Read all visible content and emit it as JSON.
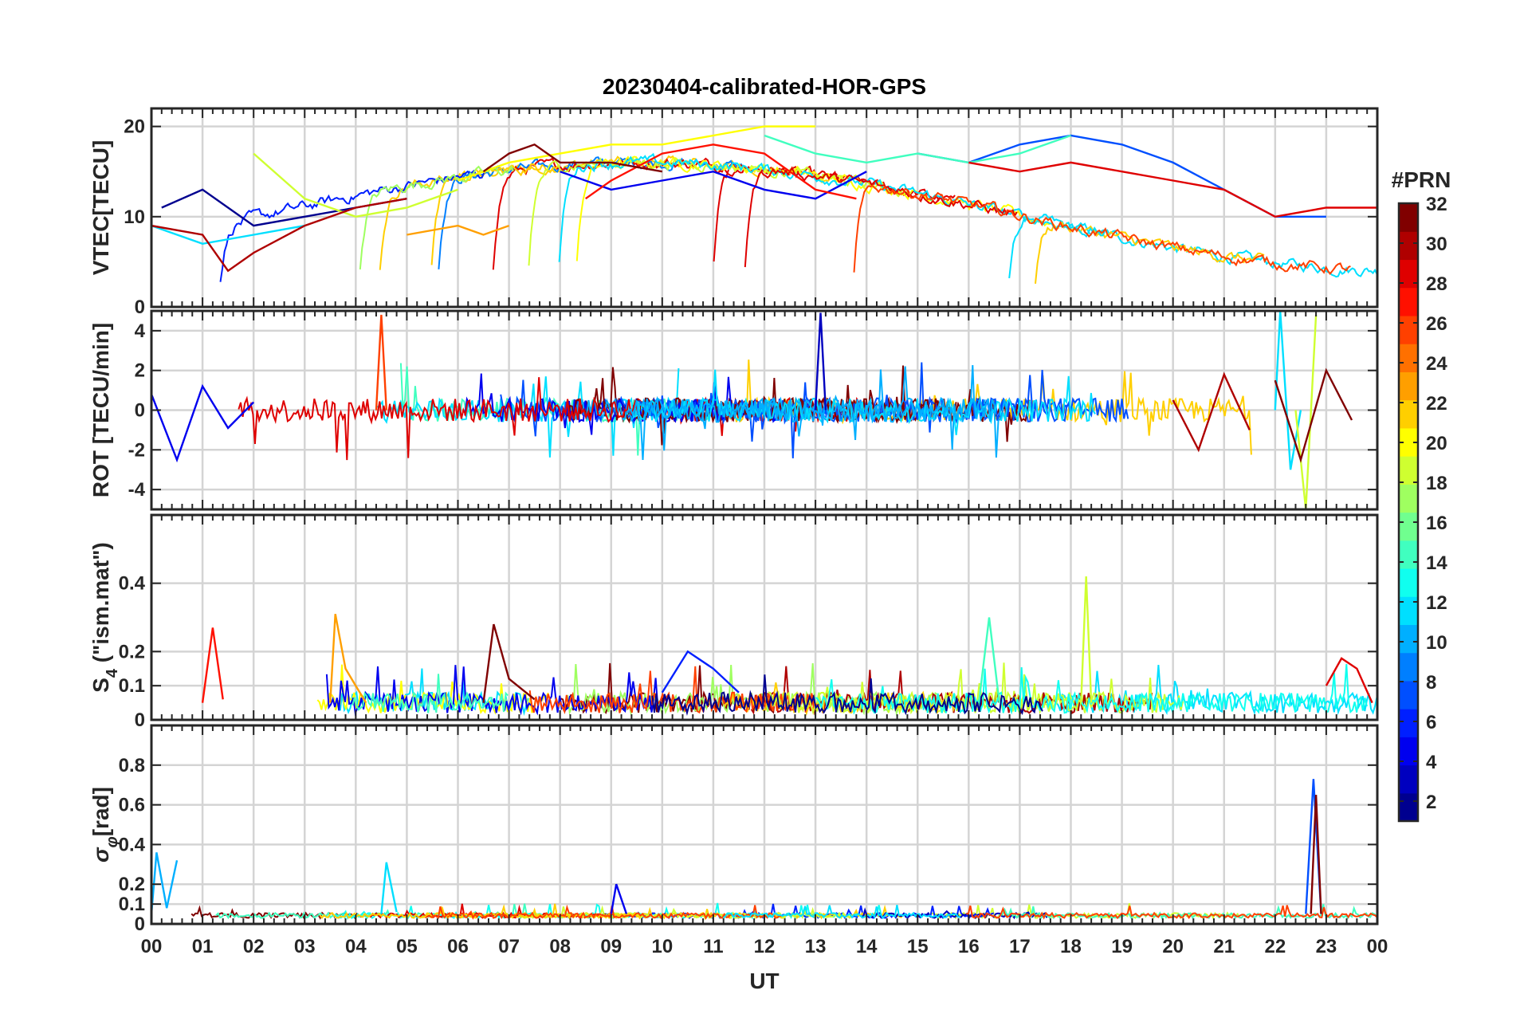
{
  "chart_data": {
    "type": "line",
    "title": "20230404-calibrated-HOR-GPS",
    "xlabel": "UT",
    "x_ticks": [
      "00",
      "01",
      "02",
      "03",
      "04",
      "05",
      "06",
      "07",
      "08",
      "09",
      "10",
      "11",
      "12",
      "13",
      "14",
      "15",
      "16",
      "17",
      "18",
      "19",
      "20",
      "21",
      "22",
      "23",
      "00"
    ],
    "xlim": [
      0,
      24
    ],
    "grid": true,
    "colorbar": {
      "label": "#PRN",
      "range": [
        1,
        32
      ],
      "ticks": [
        "2",
        "4",
        "6",
        "8",
        "10",
        "12",
        "14",
        "16",
        "18",
        "20",
        "22",
        "24",
        "26",
        "28",
        "30",
        "32"
      ],
      "colors": [
        "#00008f",
        "#0000bf",
        "#0000ef",
        "#001fff",
        "#004fff",
        "#007fff",
        "#00afff",
        "#00dfff",
        "#10ffef",
        "#40ffbf",
        "#70ff8f",
        "#9fff60",
        "#cfff30",
        "#ffff00",
        "#ffcf00",
        "#ff9f00",
        "#ff7000",
        "#ff4000",
        "#ff1000",
        "#df0000",
        "#af0000",
        "#800000"
      ]
    },
    "panels": [
      {
        "ylabel": "VTEC[TECU]",
        "ylim": [
          0,
          22
        ],
        "y_ticks": [
          0,
          10,
          20
        ],
        "series": [
          {
            "prn": 2,
            "x": [
              0.2,
              1.0,
              2.0,
              3.0,
              4.0,
              5.0
            ],
            "y": [
              11,
              13,
              9,
              10,
              11,
              12
            ]
          },
          {
            "prn": 5,
            "x": [
              8.0,
              9.0,
              10.0,
              11.0,
              12.0,
              13.0,
              14.0
            ],
            "y": [
              15,
              13,
              14,
              15,
              13,
              12,
              15
            ]
          },
          {
            "prn": 7,
            "x": [
              15.0,
              16.0,
              17.0,
              18.0,
              19.0,
              20.0,
              21.0,
              22.0,
              23.0
            ],
            "y": [
              17,
              16,
              18,
              19,
              18,
              16,
              13,
              10,
              10
            ]
          },
          {
            "prn": 12,
            "x": [
              0,
              1.0,
              2.0,
              3.0
            ],
            "y": [
              9,
              7,
              8,
              9
            ]
          },
          {
            "prn": 15,
            "x": [
              12.0,
              13.0,
              14.0,
              15.0,
              16.0,
              17.0,
              18.0
            ],
            "y": [
              19,
              17,
              16,
              17,
              16,
              17,
              19
            ]
          },
          {
            "prn": 18,
            "x": [
              2.0,
              3.0,
              4.0,
              5.0,
              6.0
            ],
            "y": [
              17,
              12,
              10,
              11,
              13
            ]
          },
          {
            "prn": 20,
            "x": [
              6.0,
              7.0,
              8.0,
              9.0,
              10.0,
              11.0,
              12.0,
              13.0
            ],
            "y": [
              14,
              16,
              17,
              18,
              18,
              19,
              20,
              20
            ]
          },
          {
            "prn": 23,
            "x": [
              5.0,
              6.0,
              6.5,
              7.0
            ],
            "y": [
              8,
              9,
              8,
              9
            ]
          },
          {
            "prn": 27,
            "x": [
              8.5,
              9.0,
              10.0,
              11.0,
              12.0,
              13.0,
              13.8
            ],
            "y": [
              12,
              14,
              17,
              18,
              17,
              13,
              12
            ]
          },
          {
            "prn": 30,
            "x": [
              0,
              1.0,
              1.5,
              2.0,
              3.0,
              4.0,
              5.0
            ],
            "y": [
              9,
              8,
              4,
              6,
              9,
              11,
              12
            ]
          },
          {
            "prn": 32,
            "x": [
              6.5,
              7.0,
              7.5,
              8.0,
              9.0,
              10.0
            ],
            "y": [
              15,
              17,
              18,
              16,
              16,
              15
            ]
          },
          {
            "prn": 29,
            "x": [
              16.0,
              17.0,
              18.0,
              19.0,
              20.0,
              21.0,
              22.0,
              23.0,
              24.0
            ],
            "y": [
              16,
              15,
              16,
              15,
              14,
              13,
              10,
              11,
              11
            ]
          }
        ]
      },
      {
        "ylabel": "ROT [TECU/min]",
        "ylim": [
          -5,
          5
        ],
        "y_ticks": [
          -4,
          -2,
          0,
          2,
          4
        ],
        "series": [
          {
            "prn": 4,
            "x": [
              0,
              0.5,
              1.0,
              1.5,
              2.0
            ],
            "y": [
              0.8,
              -2.5,
              1.2,
              -0.9,
              0.4
            ]
          },
          {
            "prn": 26,
            "x": [
              4.4,
              4.5,
              4.6
            ],
            "y": [
              0,
              4.8,
              0
            ]
          },
          {
            "prn": 3,
            "x": [
              13.0,
              13.1,
              13.2
            ],
            "y": [
              0,
              4.9,
              0
            ]
          },
          {
            "prn": 11,
            "x": [
              22.0,
              22.1,
              22.3,
              22.5
            ],
            "y": [
              0,
              5.0,
              -3.0,
              0
            ]
          },
          {
            "prn": 19,
            "x": [
              22.4,
              22.6,
              22.8
            ],
            "y": [
              0,
              -5.0,
              4.8
            ]
          },
          {
            "prn": 30,
            "x": [
              20.0,
              20.5,
              21.0,
              21.5
            ],
            "y": [
              0.5,
              -2.0,
              1.8,
              -1.0
            ]
          },
          {
            "prn": 32,
            "x": [
              22.0,
              22.5,
              23.0,
              23.5
            ],
            "y": [
              1.5,
              -2.5,
              2.0,
              -0.5
            ]
          }
        ]
      },
      {
        "ylabel": "S4 (\"ism.mat\")",
        "ylabel_main": "S",
        "ylabel_sub": "4",
        "ylabel_rest": " (\"ism.mat\")",
        "ylim": [
          0,
          0.6
        ],
        "y_ticks": [
          0,
          0.1,
          0.2,
          0.4
        ],
        "y_tick_labels": [
          "0",
          "0.1",
          "0.2",
          "0.4"
        ],
        "series": [
          {
            "prn": 18,
            "x": [
              18.2,
              18.3,
              18.4
            ],
            "y": [
              0.05,
              0.42,
              0.05
            ]
          },
          {
            "prn": 23,
            "x": [
              3.5,
              3.6,
              3.8,
              4.0,
              4.2
            ],
            "y": [
              0.05,
              0.31,
              0.15,
              0.1,
              0.05
            ]
          },
          {
            "prn": 31,
            "x": [
              6.5,
              6.7,
              7.0,
              7.5
            ],
            "y": [
              0.05,
              0.28,
              0.12,
              0.06
            ]
          },
          {
            "prn": 27,
            "x": [
              1.0,
              1.2,
              1.4
            ],
            "y": [
              0.05,
              0.27,
              0.06
            ]
          },
          {
            "prn": 6,
            "x": [
              10.0,
              10.5,
              11.0,
              11.5
            ],
            "y": [
              0.08,
              0.2,
              0.15,
              0.08
            ]
          },
          {
            "prn": 15,
            "x": [
              16.2,
              16.4,
              16.6
            ],
            "y": [
              0.05,
              0.3,
              0.05
            ]
          },
          {
            "prn": 28,
            "x": [
              23.0,
              23.3,
              23.6,
              23.9
            ],
            "y": [
              0.1,
              0.18,
              0.15,
              0.05
            ]
          }
        ]
      },
      {
        "ylabel": "σφ[rad]",
        "ylabel_main": "σ",
        "ylabel_sub": "φ",
        "ylabel_rest": "[rad]",
        "ylim": [
          0,
          1.0
        ],
        "y_ticks": [
          0,
          0.1,
          0.2,
          0.4,
          0.6,
          0.8
        ],
        "y_tick_labels": [
          "0",
          "0.1",
          "0.2",
          "0.4",
          "0.6",
          "0.8"
        ],
        "series": [
          {
            "prn": 10,
            "x": [
              0,
              0.1,
              0.3,
              0.5
            ],
            "y": [
              0.05,
              0.36,
              0.08,
              0.32
            ]
          },
          {
            "prn": 11,
            "x": [
              4.5,
              4.6,
              4.8
            ],
            "y": [
              0.05,
              0.31,
              0.06
            ]
          },
          {
            "prn": 8,
            "x": [
              22.6,
              22.75,
              22.9
            ],
            "y": [
              0.05,
              0.73,
              0.05
            ]
          },
          {
            "prn": 32,
            "x": [
              22.7,
              22.8,
              22.9
            ],
            "y": [
              0.05,
              0.65,
              0.05
            ]
          },
          {
            "prn": 5,
            "x": [
              9.0,
              9.1,
              9.3
            ],
            "y": [
              0.05,
              0.2,
              0.05
            ]
          }
        ]
      }
    ]
  }
}
